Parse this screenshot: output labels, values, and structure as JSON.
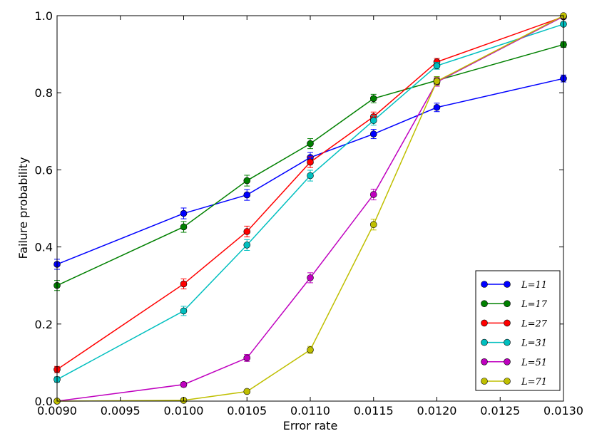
{
  "chart_data": {
    "type": "line",
    "title": "",
    "xlabel": "Error rate",
    "ylabel": "Failure probability",
    "xlim": [
      0.009,
      0.013
    ],
    "ylim": [
      0.0,
      1.0
    ],
    "xticks": [
      0.009,
      0.0095,
      0.01,
      0.0105,
      0.011,
      0.0115,
      0.012,
      0.0125,
      0.013
    ],
    "xtick_labels": [
      "0.0090",
      "0.0095",
      "0.0100",
      "0.0105",
      "0.0110",
      "0.0115",
      "0.0120",
      "0.0125",
      "0.0130"
    ],
    "yticks": [
      0.0,
      0.2,
      0.4,
      0.6,
      0.8,
      1.0
    ],
    "ytick_labels": [
      "0.0",
      "0.2",
      "0.4",
      "0.6",
      "0.8",
      "1.0"
    ],
    "grid": false,
    "legend_position": "lower-right",
    "x": [
      0.009,
      0.01,
      0.0105,
      0.011,
      0.0115,
      0.012,
      0.013
    ],
    "series": [
      {
        "name": "L=11",
        "color": "#0000ff",
        "values": [
          0.355,
          0.487,
          0.535,
          0.632,
          0.693,
          0.762,
          0.837
        ],
        "errors": [
          0.013,
          0.014,
          0.014,
          0.013,
          0.012,
          0.011,
          0.009
        ]
      },
      {
        "name": "L=17",
        "color": "#008000",
        "values": [
          0.3,
          0.452,
          0.572,
          0.668,
          0.785,
          0.832,
          0.925
        ],
        "errors": [
          0.013,
          0.014,
          0.014,
          0.013,
          0.011,
          0.01,
          0.007
        ]
      },
      {
        "name": "L=27",
        "color": "#ff0000",
        "values": [
          0.082,
          0.304,
          0.44,
          0.62,
          0.738,
          0.88,
          0.997
        ],
        "errors": [
          0.008,
          0.013,
          0.014,
          0.014,
          0.012,
          0.009,
          0.002
        ]
      },
      {
        "name": "L=31",
        "color": "#00bfbf",
        "values": [
          0.056,
          0.234,
          0.405,
          0.585,
          0.728,
          0.87,
          0.978
        ],
        "errors": [
          0.007,
          0.012,
          0.014,
          0.014,
          0.012,
          0.009,
          0.004
        ]
      },
      {
        "name": "L=51",
        "color": "#bf00bf",
        "values": [
          0.0,
          0.043,
          0.112,
          0.32,
          0.536,
          0.828,
          0.998
        ],
        "errors": [
          0.0,
          0.006,
          0.009,
          0.013,
          0.014,
          0.011,
          0.001
        ]
      },
      {
        "name": "L=71",
        "color": "#bfbf00",
        "values": [
          0.0,
          0.002,
          0.025,
          0.133,
          0.458,
          0.83,
          1.0
        ],
        "errors": [
          0.0,
          0.001,
          0.004,
          0.009,
          0.014,
          0.011,
          0.0
        ]
      }
    ]
  }
}
